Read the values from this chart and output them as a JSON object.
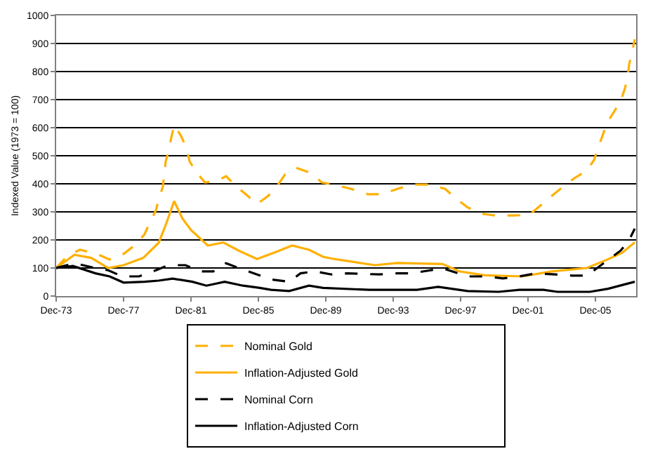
{
  "chart_data": {
    "type": "line",
    "ylabel": "Indexed Value (1973 = 100)",
    "xlim": [
      "1973-12",
      "2008-05"
    ],
    "xticks": [
      {
        "value": "1973-12",
        "label": "Dec-73"
      },
      {
        "value": "1977-12",
        "label": "Dec-77"
      },
      {
        "value": "1981-12",
        "label": "Dec-81"
      },
      {
        "value": "1985-12",
        "label": "Dec-85"
      },
      {
        "value": "1989-12",
        "label": "Dec-89"
      },
      {
        "value": "1993-12",
        "label": "Dec-93"
      },
      {
        "value": "1997-12",
        "label": "Dec-97"
      },
      {
        "value": "2001-12",
        "label": "Dec-01"
      },
      {
        "value": "2005-12",
        "label": "Dec-05"
      }
    ],
    "ylim": [
      0,
      1000
    ],
    "yticks": [
      0,
      100,
      200,
      300,
      400,
      500,
      600,
      700,
      800,
      900,
      1000
    ],
    "grid": "y",
    "legend": "bottom",
    "marker": "none",
    "series": [
      {
        "name": "Nominal Gold",
        "color": "#ffb000",
        "line_style": "dashed",
        "x": [
          "1973-12",
          "1974-08",
          "1975-05",
          "1976-05",
          "1977-02",
          "1977-12",
          "1978-09",
          "1979-03",
          "1979-07",
          "1979-11",
          "1980-01",
          "1980-04",
          "1980-05",
          "1980-06",
          "1980-08",
          "1980-10",
          "1980-12",
          "1981-05",
          "1981-09",
          "1981-11",
          "1982-04",
          "1982-10",
          "1983-05",
          "1984-01",
          "1984-07",
          "1985-03",
          "1985-11",
          "1986-07",
          "1987-01",
          "1987-07",
          "1988-03",
          "1989-02",
          "1989-09",
          "1990-06",
          "1991-06",
          "1992-06",
          "1993-04",
          "1994-03",
          "1995-02",
          "1996-02",
          "1997-01",
          "1997-08",
          "1998-05",
          "1999-02",
          "2000-01",
          "2001-02",
          "2002-01",
          "2002-09",
          "2003-05",
          "2004-01",
          "2004-09",
          "2005-06",
          "2005-11",
          "2006-02",
          "2006-05",
          "2006-08",
          "2007-01",
          "2007-06",
          "2007-09",
          "2007-11",
          "2007-12",
          "2008-02",
          "2008-04"
        ],
        "values": [
          100,
          143,
          165,
          150,
          130,
          150,
          185,
          220,
          265,
          305,
          345,
          390,
          435,
          480,
          515,
          565,
          610,
          570,
          525,
          480,
          440,
          405,
          408,
          427,
          397,
          363,
          328,
          357,
          390,
          433,
          457,
          437,
          405,
          397,
          382,
          363,
          363,
          382,
          397,
          397,
          382,
          350,
          316,
          294,
          287,
          287,
          290,
          323,
          357,
          390,
          420,
          448,
          485,
          530,
          570,
          615,
          655,
          695,
          740,
          783,
          825,
          868,
          915
        ]
      },
      {
        "name": "Inflation-Adjusted Gold",
        "color": "#ffb000",
        "line_style": "solid",
        "x": [
          "1973-12",
          "1975-01",
          "1976-01",
          "1977-01",
          "1977-12",
          "1979-02",
          "1980-01",
          "1980-06",
          "1980-12",
          "1981-06",
          "1981-12",
          "1982-12",
          "1983-11",
          "1984-10",
          "1985-11",
          "1987-01",
          "1987-12",
          "1988-12",
          "1989-10",
          "1990-06",
          "1992-11",
          "1994-03",
          "1996-11",
          "1997-11",
          "1999-05",
          "2001-08",
          "2003-05",
          "2005-06",
          "2006-08",
          "2007-07",
          "2008-04"
        ],
        "values": [
          100,
          147,
          136,
          100,
          110,
          136,
          190,
          253,
          338,
          276,
          235,
          180,
          191,
          162,
          132,
          158,
          180,
          165,
          140,
          132,
          110,
          118,
          114,
          88,
          74,
          70,
          88,
          100,
          129,
          154,
          191
        ]
      },
      {
        "name": "Nominal Corn",
        "color": "#000000",
        "line_style": "dashed",
        "x": [
          "1973-12",
          "1975-01",
          "1976-01",
          "1977-01",
          "1977-11",
          "1978-11",
          "1979-09",
          "1980-08",
          "1981-08",
          "1982-07",
          "1983-04",
          "1984-01",
          "1984-12",
          "1985-11",
          "1986-09",
          "1987-10",
          "1988-06",
          "1989-04",
          "1990-04",
          "1991-03",
          "1993-02",
          "1994-03",
          "1995-01",
          "1996-11",
          "1998-05",
          "1999-07",
          "2000-06",
          "2001-06",
          "2002-06",
          "2003-07",
          "2004-07",
          "2005-06",
          "2006-09",
          "2007-06",
          "2007-12",
          "2008-04"
        ],
        "values": [
          100,
          117,
          103,
          92,
          70,
          70,
          88,
          110,
          110,
          88,
          88,
          117,
          96,
          77,
          59,
          51,
          81,
          88,
          77,
          81,
          77,
          81,
          81,
          99,
          70,
          70,
          63,
          70,
          81,
          77,
          73,
          73,
          129,
          162,
          199,
          240
        ]
      },
      {
        "name": "Inflation-Adjusted Corn",
        "color": "#000000",
        "line_style": "solid",
        "x": [
          "1973-12",
          "1974-12",
          "1976-04",
          "1977-02",
          "1977-12",
          "1979-03",
          "1980-01",
          "1980-11",
          "1982-01",
          "1982-11",
          "1983-12",
          "1985-01",
          "1986-01",
          "1986-09",
          "1987-10",
          "1988-12",
          "1989-10",
          "1992-07",
          "1995-05",
          "1996-08",
          "1998-05",
          "2000-03",
          "2001-06",
          "2002-11",
          "2003-09",
          "2005-08",
          "2006-09",
          "2008-04"
        ],
        "values": [
          100,
          107,
          81,
          70,
          48,
          51,
          55,
          62,
          51,
          37,
          51,
          37,
          29,
          22,
          18,
          37,
          29,
          22,
          22,
          33,
          18,
          15,
          22,
          22,
          15,
          15,
          26,
          51
        ]
      }
    ]
  }
}
